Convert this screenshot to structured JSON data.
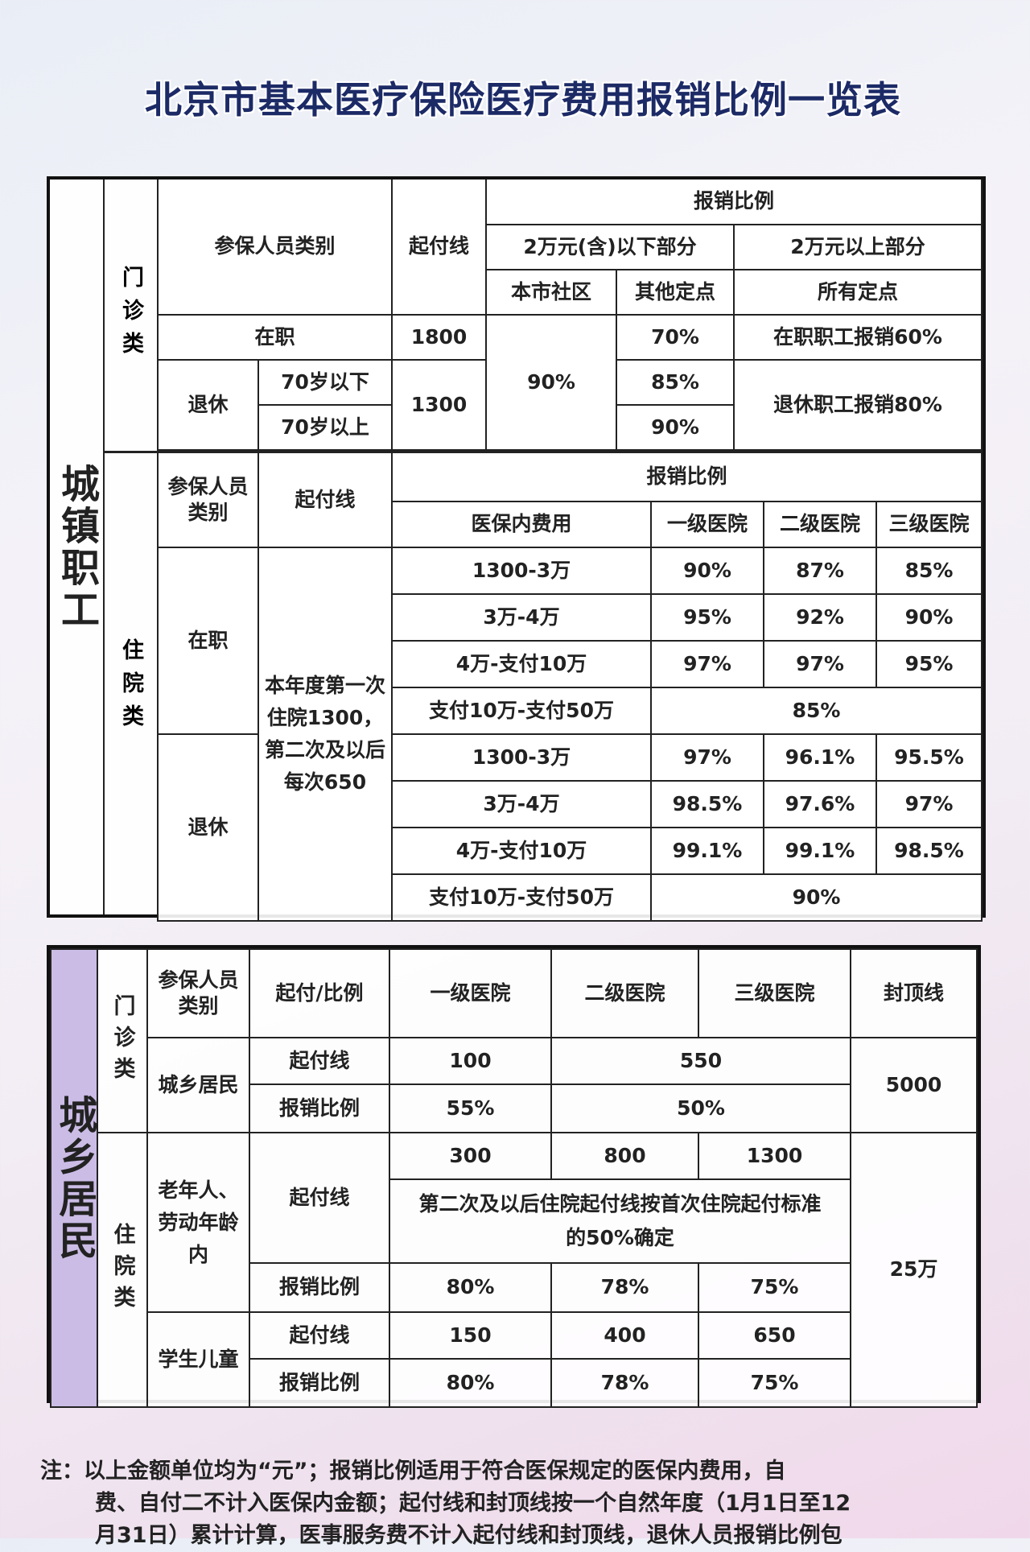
{
  "title": "北京市基本医疗保险医疗费用报销比例一览表",
  "urban_workers": {
    "label": "城镇职工",
    "outpatient": {
      "label": "门诊类",
      "h_category": "参保人员类别",
      "h_deductible": "起付线",
      "h_ratio": "报销比例",
      "h_below": "2万元(含)以下部分",
      "h_above": "2万元以上部分",
      "h_community": "本市社区",
      "h_other": "其他定点",
      "h_all": "所有定点",
      "employed": "在职",
      "employed_deductible": "1800",
      "community_ratio": "90%",
      "employed_other": "70%",
      "employed_above": "在职职工报销60%",
      "retired": "退休",
      "under70": "70岁以下",
      "over70": "70岁以上",
      "retired_deductible": "1300",
      "under70_other": "85%",
      "over70_other": "90%",
      "retired_above": "退休职工报销80%"
    },
    "inpatient": {
      "label": "住院类",
      "h_category": "参保人员类别",
      "h_deductible": "起付线",
      "h_ratio": "报销比例",
      "h_cost": "医保内费用",
      "h_l1": "一级医院",
      "h_l2": "二级医院",
      "h_l3": "三级医院",
      "deductible": "本年度第一次住院1300，第二次及以后每次650",
      "employed": "在职",
      "retired": "退休",
      "employed_rows": [
        {
          "range": "1300-3万",
          "l1": "90%",
          "l2": "87%",
          "l3": "85%"
        },
        {
          "range": "3万-4万",
          "l1": "95%",
          "l2": "92%",
          "l3": "90%"
        },
        {
          "range": "4万-支付10万",
          "l1": "97%",
          "l2": "97%",
          "l3": "95%"
        }
      ],
      "employed_top": {
        "range": "支付10万-支付50万",
        "all": "85%"
      },
      "retired_rows": [
        {
          "range": "1300-3万",
          "l1": "97%",
          "l2": "96.1%",
          "l3": "95.5%"
        },
        {
          "range": "3万-4万",
          "l1": "98.5%",
          "l2": "97.6%",
          "l3": "97%"
        },
        {
          "range": "4万-支付10万",
          "l1": "99.1%",
          "l2": "99.1%",
          "l3": "98.5%"
        }
      ],
      "retired_top": {
        "range": "支付10万-支付50万",
        "all": "90%"
      }
    }
  },
  "urban_rural": {
    "label": "城乡居民",
    "h_category": "参保人员类别",
    "h_type": "起付/比例",
    "h_l1": "一级医院",
    "h_l2": "二级医院",
    "h_l3": "三级医院",
    "h_cap": "封顶线",
    "outpatient": {
      "label": "门诊类",
      "group": "城乡居民",
      "deductible": "起付线",
      "ratio": "报销比例",
      "ded_l1": "100",
      "ded_l23": "550",
      "ratio_l1": "55%",
      "ratio_l23": "50%",
      "cap": "5000"
    },
    "inpatient": {
      "label": "住院类",
      "adults": "老年人、劳动年龄内",
      "deductible": "起付线",
      "ratio": "报销比例",
      "ded": [
        "300",
        "800",
        "1300"
      ],
      "second_note": "第二次及以后住院起付线按首次住院起付标准的50%确定",
      "ratios": [
        "80%",
        "78%",
        "75%"
      ],
      "children": "学生儿童",
      "child_ded": [
        "150",
        "400",
        "650"
      ],
      "child_ratios": [
        "80%",
        "78%",
        "75%"
      ],
      "cap": "25万"
    }
  },
  "note": {
    "line1": "注：以上金额单位均为“元”；报销比例适用于符合医保规定的医保内费用，自",
    "line2": "费、自付二不计入医保内金额；起付线和封顶线按一个自然年度（1月1日至12",
    "line3": "月31日）累计计算，医事服务费不计入起付线和封顶线，退休人员报销比例包"
  }
}
